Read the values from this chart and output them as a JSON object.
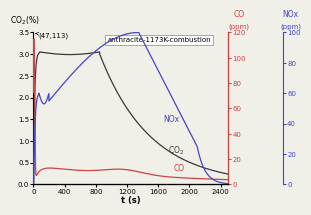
{
  "title": "anthracite-1173K-combustion",
  "xlabel": "t (s)",
  "annotation": "(47,113)",
  "xlim": [
    0,
    2500
  ],
  "ylim_left": [
    0,
    3.5
  ],
  "ylim_co": [
    0,
    120
  ],
  "ylim_nox": [
    0,
    100
  ],
  "co2_color": "#3a3a3a",
  "co_color": "#cc4444",
  "nox_color": "#4444cc",
  "background": "#f0f0e8",
  "xticks": [
    0,
    400,
    800,
    1200,
    1600,
    2000,
    2400
  ],
  "yticks_left": [
    0.0,
    0.5,
    1.0,
    1.5,
    2.0,
    2.5,
    3.0,
    3.5
  ],
  "yticks_co": [
    0,
    20,
    40,
    60,
    80,
    100,
    120
  ],
  "yticks_nox": [
    0,
    20,
    40,
    60,
    80,
    100
  ]
}
